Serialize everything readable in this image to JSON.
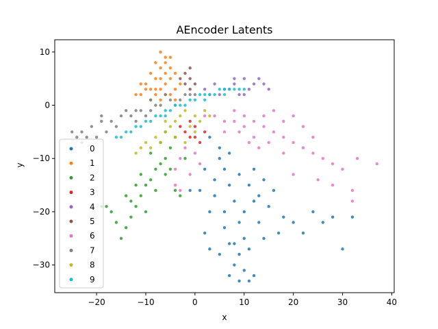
{
  "chart_data": {
    "type": "scatter",
    "title": "AEncoder Latents",
    "xlabel": "x",
    "ylabel": "y",
    "xlim": [
      -28.5,
      40.5
    ],
    "ylim": [
      -35.2,
      12.3
    ],
    "xticks": [
      -20,
      -10,
      0,
      10,
      20,
      30,
      40
    ],
    "yticks": [
      10,
      0,
      -10,
      -20,
      -30
    ],
    "xtick_labels": [
      "−20",
      "−10",
      "0",
      "10",
      "20",
      "30",
      "40"
    ],
    "ytick_labels": [
      "10",
      "0",
      "−10",
      "−20",
      "−30"
    ],
    "grid": false,
    "legend_position": "lower-left",
    "series": [
      {
        "name": "0",
        "color": "#1f77b4",
        "points": [
          [
            5,
            -10
          ],
          [
            6,
            -12
          ],
          [
            7,
            -15
          ],
          [
            8,
            -18
          ],
          [
            9,
            -22
          ],
          [
            10,
            -25
          ],
          [
            9,
            -28
          ],
          [
            10,
            -31
          ],
          [
            11,
            -33
          ],
          [
            12,
            -32
          ],
          [
            4,
            -14
          ],
          [
            3,
            -20
          ],
          [
            2,
            -24
          ],
          [
            6,
            -20
          ],
          [
            7,
            -26
          ],
          [
            8,
            -30
          ],
          [
            11,
            -27
          ],
          [
            13,
            -22
          ],
          [
            15,
            -19
          ],
          [
            18,
            -21
          ],
          [
            20,
            -22
          ],
          [
            22,
            -24
          ],
          [
            24,
            -20
          ],
          [
            26,
            -22
          ],
          [
            28,
            -21
          ],
          [
            30,
            -27
          ],
          [
            32,
            -21
          ],
          [
            16,
            -16
          ],
          [
            14,
            -14
          ],
          [
            12,
            -12
          ],
          [
            5,
            -8
          ],
          [
            3,
            -6
          ],
          [
            2,
            -12
          ],
          [
            1,
            -16
          ],
          [
            -1,
            -16
          ],
          [
            4,
            -17
          ],
          [
            6,
            -23
          ],
          [
            8,
            -26
          ],
          [
            10,
            -20
          ],
          [
            12,
            -18
          ],
          [
            9,
            -13
          ],
          [
            7,
            -9
          ],
          [
            11,
            -15
          ],
          [
            13,
            -17
          ],
          [
            5,
            -28
          ],
          [
            7,
            -32
          ],
          [
            9,
            -33
          ],
          [
            3,
            -27
          ],
          [
            14,
            -25
          ],
          [
            17,
            -24
          ]
        ]
      },
      {
        "name": "1",
        "color": "#ff7f0e",
        "points": [
          [
            -7,
            10
          ],
          [
            -6,
            9
          ],
          [
            -8,
            8
          ],
          [
            -5,
            7
          ],
          [
            -9,
            6
          ],
          [
            -7,
            5
          ],
          [
            -6,
            4
          ],
          [
            -8,
            3
          ],
          [
            -10,
            3
          ],
          [
            -11,
            2
          ],
          [
            -12,
            2
          ],
          [
            -9,
            1
          ],
          [
            -7,
            1
          ],
          [
            -5,
            2
          ],
          [
            -4,
            3
          ],
          [
            -6,
            6
          ],
          [
            -8,
            5
          ],
          [
            -10,
            4
          ],
          [
            -5,
            5
          ],
          [
            -4,
            6
          ],
          [
            -7,
            7
          ],
          [
            -9,
            3
          ],
          [
            -6,
            2
          ],
          [
            -8,
            2
          ],
          [
            -11,
            4
          ],
          [
            -6,
            8
          ],
          [
            -5,
            9
          ],
          [
            -7,
            3
          ],
          [
            -4,
            1
          ],
          [
            -3,
            4
          ]
        ]
      },
      {
        "name": "2",
        "color": "#2ca02c",
        "points": [
          [
            -4,
            -6
          ],
          [
            -5,
            -8
          ],
          [
            -6,
            -10
          ],
          [
            -7,
            -11
          ],
          [
            -8,
            -12
          ],
          [
            -9,
            -14
          ],
          [
            -10,
            -15
          ],
          [
            -11,
            -17
          ],
          [
            -12,
            -19
          ],
          [
            -13,
            -21
          ],
          [
            -14,
            -23
          ],
          [
            -15,
            -25
          ],
          [
            -16,
            -22
          ],
          [
            -17,
            -20
          ],
          [
            -18,
            -19
          ],
          [
            -19,
            -19
          ],
          [
            -13,
            -18
          ],
          [
            -11,
            -13
          ],
          [
            -9,
            -9
          ],
          [
            -7,
            -7
          ],
          [
            -6,
            -13
          ],
          [
            -4,
            -16
          ],
          [
            -3,
            -17
          ],
          [
            -8,
            -16
          ],
          [
            -10,
            -20
          ],
          [
            -12,
            -15
          ],
          [
            -14,
            -17
          ],
          [
            -5,
            -12
          ],
          [
            -2,
            -10
          ],
          [
            -6,
            -5
          ]
        ]
      },
      {
        "name": "3",
        "color": "#d62728",
        "points": [
          [
            -2,
            -5
          ],
          [
            -1,
            -6
          ],
          [
            0,
            -4
          ],
          [
            1,
            -7
          ],
          [
            -3,
            -4
          ],
          [
            2,
            -5
          ],
          [
            0,
            -6
          ],
          [
            -1,
            -3
          ]
        ]
      },
      {
        "name": "4",
        "color": "#9467bd",
        "points": [
          [
            2,
            3
          ],
          [
            4,
            4
          ],
          [
            6,
            3
          ],
          [
            8,
            4
          ],
          [
            10,
            5
          ],
          [
            12,
            4
          ],
          [
            14,
            4
          ],
          [
            9,
            2
          ],
          [
            7,
            3
          ],
          [
            11,
            3
          ],
          [
            13,
            5
          ],
          [
            5,
            2
          ],
          [
            3,
            2
          ],
          [
            15,
            3
          ],
          [
            8,
            5
          ],
          [
            10,
            2
          ]
        ]
      },
      {
        "name": "5",
        "color": "#8c564b",
        "points": [
          [
            -1,
            7
          ],
          [
            -2,
            6
          ],
          [
            -1,
            5
          ],
          [
            -2,
            4
          ],
          [
            -1,
            3
          ],
          [
            -3,
            5
          ],
          [
            0,
            4
          ]
        ]
      },
      {
        "name": "6",
        "color": "#e377c2",
        "points": [
          [
            2,
            -2
          ],
          [
            4,
            -2
          ],
          [
            6,
            -3
          ],
          [
            8,
            -3
          ],
          [
            10,
            -4
          ],
          [
            12,
            -3
          ],
          [
            14,
            -4
          ],
          [
            16,
            -5
          ],
          [
            18,
            -6
          ],
          [
            20,
            -7
          ],
          [
            22,
            -8
          ],
          [
            24,
            -9
          ],
          [
            26,
            -10
          ],
          [
            28,
            -11
          ],
          [
            30,
            -12
          ],
          [
            33,
            -10
          ],
          [
            37,
            -11
          ],
          [
            25,
            -14
          ],
          [
            28,
            -15
          ],
          [
            32,
            -16
          ],
          [
            32,
            -18
          ],
          [
            20,
            -13
          ],
          [
            18,
            -9
          ],
          [
            15,
            -7
          ],
          [
            12,
            -6
          ],
          [
            10,
            -2
          ],
          [
            8,
            -1
          ],
          [
            6,
            -5
          ],
          [
            -2,
            -8
          ],
          [
            -3,
            -10
          ],
          [
            -4,
            -12
          ],
          [
            0,
            -9
          ],
          [
            1,
            -11
          ],
          [
            -1,
            -13
          ],
          [
            -4,
            -15
          ],
          [
            -3,
            -16
          ],
          [
            18,
            -3
          ],
          [
            16,
            -1
          ],
          [
            22,
            -4
          ],
          [
            14,
            -2
          ],
          [
            11,
            -7
          ],
          [
            9,
            -5
          ],
          [
            13,
            -8
          ],
          [
            20,
            -2
          ],
          [
            24,
            -6
          ]
        ]
      },
      {
        "name": "7",
        "color": "#7f7f7f",
        "points": [
          [
            -25,
            -5
          ],
          [
            -23,
            -5
          ],
          [
            -21,
            -4
          ],
          [
            -19,
            -3
          ],
          [
            -17,
            -3
          ],
          [
            -15,
            -2
          ],
          [
            -13,
            -2
          ],
          [
            -11,
            -1
          ],
          [
            -9,
            -1
          ],
          [
            -7,
            0
          ],
          [
            -5,
            1
          ],
          [
            -3,
            1
          ],
          [
            -1,
            2
          ],
          [
            -18,
            -5
          ],
          [
            -20,
            -6
          ],
          [
            -22,
            -6
          ],
          [
            -16,
            -4
          ],
          [
            -14,
            -1
          ],
          [
            -12,
            -3
          ],
          [
            -10,
            -2
          ],
          [
            -8,
            0
          ],
          [
            -6,
            2
          ],
          [
            -4,
            0
          ],
          [
            -2,
            2
          ],
          [
            0,
            2
          ],
          [
            -24,
            -6
          ],
          [
            -19,
            -2
          ],
          [
            -23,
            -7
          ],
          [
            -12,
            -1
          ],
          [
            -9,
            1
          ]
        ]
      },
      {
        "name": "8",
        "color": "#bcbd22",
        "points": [
          [
            -2,
            -1
          ],
          [
            0,
            -2
          ],
          [
            -4,
            -3
          ],
          [
            -6,
            -5
          ],
          [
            -8,
            -6
          ],
          [
            -10,
            -7
          ],
          [
            -11,
            -8
          ],
          [
            -5,
            -4
          ],
          [
            -3,
            -2
          ],
          [
            -1,
            -4
          ],
          [
            1,
            -3
          ],
          [
            2,
            -1
          ],
          [
            -7,
            -7
          ],
          [
            -9,
            -8
          ],
          [
            -12,
            -9
          ],
          [
            -4,
            -6
          ],
          [
            0,
            -5
          ],
          [
            -2,
            -7
          ],
          [
            -6,
            -3
          ],
          [
            3,
            -2
          ]
        ]
      },
      {
        "name": "9",
        "color": "#17becf",
        "points": [
          [
            -15,
            -6
          ],
          [
            -13,
            -5
          ],
          [
            -11,
            -4
          ],
          [
            -9,
            -3
          ],
          [
            -7,
            -2
          ],
          [
            -5,
            -1
          ],
          [
            -3,
            0
          ],
          [
            -1,
            1
          ],
          [
            1,
            2
          ],
          [
            3,
            2
          ],
          [
            5,
            3
          ],
          [
            7,
            3
          ],
          [
            9,
            3
          ],
          [
            -12,
            -4
          ],
          [
            -8,
            -2
          ],
          [
            -4,
            0
          ],
          [
            0,
            1
          ],
          [
            4,
            2
          ],
          [
            8,
            3
          ],
          [
            -14,
            -5
          ],
          [
            -10,
            -3
          ],
          [
            -6,
            -1
          ],
          [
            -2,
            0
          ],
          [
            2,
            1
          ],
          [
            6,
            2
          ],
          [
            -16,
            -6
          ],
          [
            -6,
            -2
          ],
          [
            2,
            2
          ],
          [
            6,
            3
          ],
          [
            10,
            3
          ]
        ]
      }
    ]
  }
}
